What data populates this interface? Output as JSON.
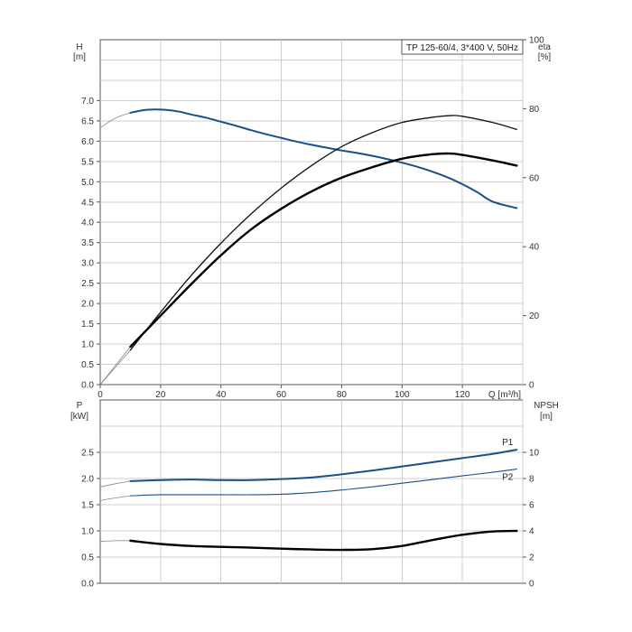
{
  "chart_data": [
    {
      "type": "line",
      "title": "TP 125-60/4, 3*400 V, 50Hz",
      "xlabel": "Q [m³/h]",
      "xlim": [
        0,
        140
      ],
      "x_ticks": [
        "0",
        "20",
        "40",
        "60",
        "80",
        "100",
        "120"
      ],
      "y_left": {
        "label_top": "H",
        "label_bottom": "[m]",
        "lim": [
          0,
          8.5
        ],
        "ticks": [
          "0.0",
          "0.5",
          "1.0",
          "1.5",
          "2.0",
          "2.5",
          "3.0",
          "3.5",
          "4.0",
          "4.5",
          "5.0",
          "5.5",
          "6.0",
          "6.5",
          "7.0"
        ]
      },
      "y_right": {
        "label_top": "eta",
        "label_bottom": "[%]",
        "lim": [
          0,
          100
        ],
        "ticks": [
          "0",
          "20",
          "40",
          "60",
          "80",
          "100"
        ]
      },
      "grid": true,
      "series": [
        {
          "axis": "left",
          "color": "#1a4f8a",
          "values": [
            [
              10,
              6.7
            ],
            [
              14,
              6.76
            ],
            [
              18,
              6.78
            ],
            [
              22,
              6.77
            ],
            [
              26,
              6.73
            ],
            [
              30,
              6.66
            ],
            [
              35,
              6.58
            ],
            [
              40,
              6.48
            ],
            [
              45,
              6.38
            ],
            [
              50,
              6.27
            ],
            [
              55,
              6.17
            ],
            [
              60,
              6.08
            ],
            [
              65,
              5.99
            ],
            [
              70,
              5.91
            ],
            [
              75,
              5.84
            ],
            [
              80,
              5.77
            ],
            [
              85,
              5.71
            ],
            [
              90,
              5.64
            ],
            [
              95,
              5.56
            ],
            [
              100,
              5.47
            ],
            [
              105,
              5.37
            ],
            [
              110,
              5.25
            ],
            [
              115,
              5.11
            ],
            [
              120,
              4.94
            ],
            [
              125,
              4.74
            ],
            [
              130,
              4.51
            ],
            [
              138,
              4.35
            ]
          ],
          "extension": [
            [
              0,
              6.33
            ],
            [
              3,
              6.48
            ],
            [
              6,
              6.6
            ],
            [
              10,
              6.7
            ]
          ]
        },
        {
          "axis": "right",
          "color": "#111111",
          "values": [
            [
              10,
              10
            ],
            [
              20,
              21
            ],
            [
              30,
              31.5
            ],
            [
              40,
              41
            ],
            [
              50,
              49.5
            ],
            [
              60,
              57
            ],
            [
              70,
              63.5
            ],
            [
              80,
              69
            ],
            [
              90,
              73
            ],
            [
              100,
              76
            ],
            [
              110,
              77.5
            ],
            [
              116,
              78
            ],
            [
              120,
              77.8
            ],
            [
              130,
              76
            ],
            [
              138,
              74
            ]
          ],
          "extension": [
            [
              0,
              0
            ],
            [
              10,
              10
            ]
          ]
        },
        {
          "axis": "right",
          "color": "#000000",
          "values": [
            [
              10,
              11
            ],
            [
              20,
              20
            ],
            [
              30,
              29
            ],
            [
              40,
              37.5
            ],
            [
              50,
              45
            ],
            [
              60,
              51
            ],
            [
              70,
              56
            ],
            [
              80,
              60
            ],
            [
              90,
              63
            ],
            [
              100,
              65.5
            ],
            [
              110,
              66.8
            ],
            [
              116,
              67
            ],
            [
              120,
              66.6
            ],
            [
              130,
              65
            ],
            [
              138,
              63.5
            ]
          ],
          "extension": [
            [
              0,
              0
            ],
            [
              10,
              11
            ]
          ]
        }
      ]
    },
    {
      "type": "line",
      "y_left": {
        "label_top": "P",
        "label_bottom": "[kW]",
        "lim": [
          0,
          3.5
        ],
        "ticks": [
          "0.0",
          "0.5",
          "1.0",
          "1.5",
          "2.0",
          "2.5"
        ]
      },
      "y_right": {
        "label_top": "NPSH",
        "label_bottom": "[m]",
        "lim": [
          0,
          14
        ],
        "ticks": [
          "0",
          "2",
          "4",
          "6",
          "8",
          "10"
        ]
      },
      "xlim": [
        0,
        140
      ],
      "grid": true,
      "series": [
        {
          "name": "P1",
          "axis": "left",
          "color": "#1a4f8a",
          "values": [
            [
              10,
              1.95
            ],
            [
              20,
              1.97
            ],
            [
              30,
              1.98
            ],
            [
              40,
              1.97
            ],
            [
              50,
              1.97
            ],
            [
              60,
              1.99
            ],
            [
              70,
              2.02
            ],
            [
              80,
              2.08
            ],
            [
              90,
              2.15
            ],
            [
              100,
              2.23
            ],
            [
              110,
              2.31
            ],
            [
              120,
              2.39
            ],
            [
              130,
              2.47
            ],
            [
              138,
              2.55
            ]
          ],
          "extension": [
            [
              0,
              1.84
            ],
            [
              5,
              1.9
            ],
            [
              10,
              1.95
            ]
          ]
        },
        {
          "name": "P2",
          "axis": "left",
          "color": "#1a4f8a",
          "values": [
            [
              10,
              1.67
            ],
            [
              20,
              1.69
            ],
            [
              30,
              1.69
            ],
            [
              40,
              1.69
            ],
            [
              50,
              1.69
            ],
            [
              60,
              1.7
            ],
            [
              70,
              1.73
            ],
            [
              80,
              1.78
            ],
            [
              90,
              1.84
            ],
            [
              100,
              1.91
            ],
            [
              110,
              1.98
            ],
            [
              120,
              2.05
            ],
            [
              130,
              2.12
            ],
            [
              138,
              2.18
            ]
          ],
          "extension": [
            [
              0,
              1.58
            ],
            [
              5,
              1.63
            ],
            [
              10,
              1.67
            ]
          ]
        },
        {
          "axis": "right",
          "color": "#000000",
          "values": [
            [
              10,
              3.25
            ],
            [
              20,
              3.0
            ],
            [
              30,
              2.85
            ],
            [
              40,
              2.78
            ],
            [
              50,
              2.72
            ],
            [
              60,
              2.64
            ],
            [
              70,
              2.58
            ],
            [
              80,
              2.55
            ],
            [
              90,
              2.6
            ],
            [
              100,
              2.85
            ],
            [
              110,
              3.3
            ],
            [
              120,
              3.7
            ],
            [
              130,
              3.95
            ],
            [
              138,
              4.0
            ]
          ],
          "extension": [
            [
              0,
              3.2
            ],
            [
              5,
              3.25
            ],
            [
              10,
              3.25
            ]
          ]
        }
      ]
    }
  ]
}
